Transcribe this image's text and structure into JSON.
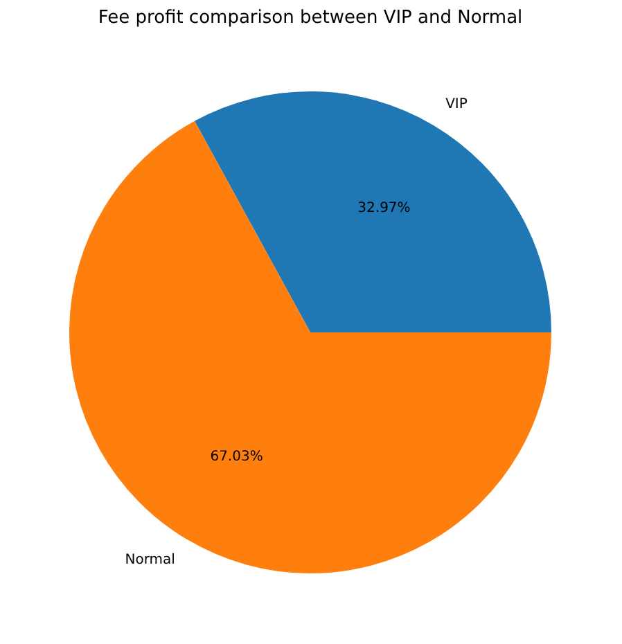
{
  "chart_data": {
    "type": "pie",
    "title": "Fee profit comparison between VIP and Normal",
    "categories": [
      "VIP",
      "Normal"
    ],
    "values": [
      32.97,
      67.03
    ],
    "value_labels": [
      "32.97%",
      "67.03%"
    ],
    "colors": [
      "#1f77b4",
      "#ff7f0e"
    ],
    "legend": false
  }
}
